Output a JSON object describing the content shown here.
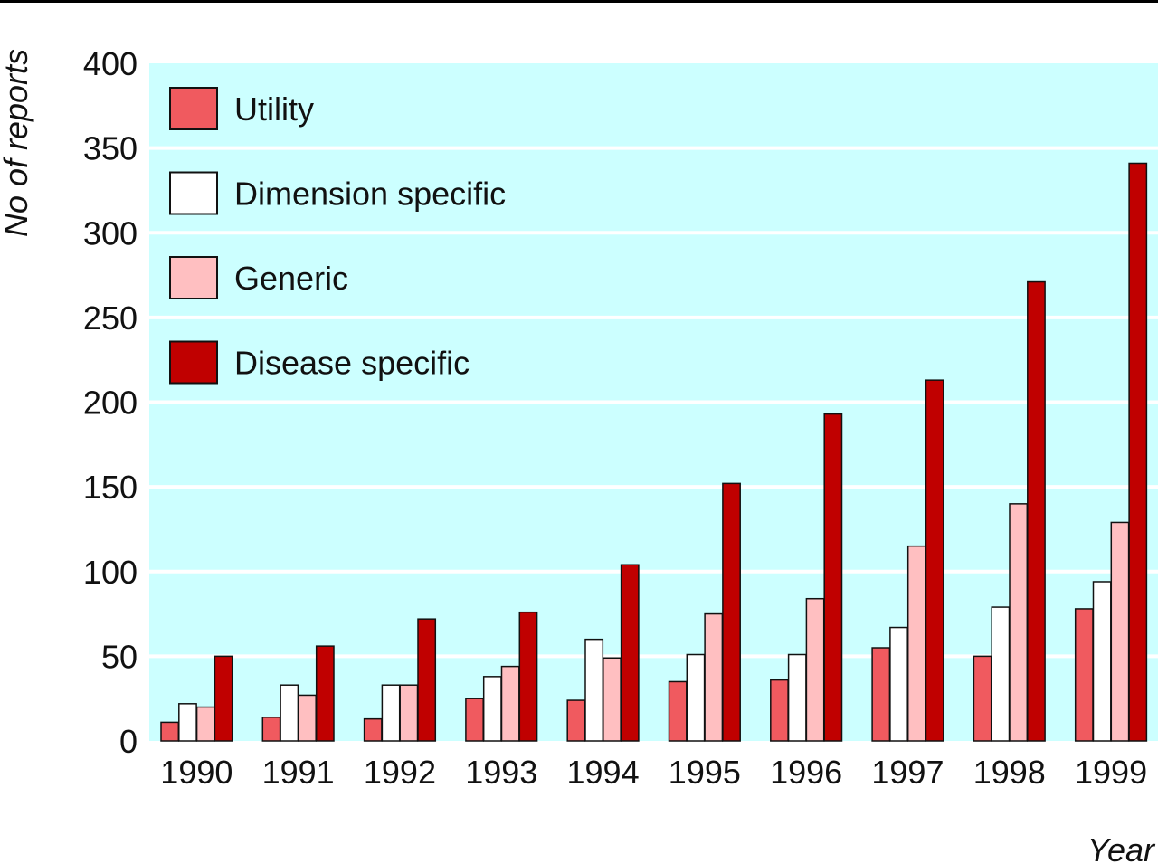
{
  "chart_data": {
    "type": "bar",
    "title": "",
    "xlabel": "Year",
    "ylabel": "No of reports",
    "ylim": [
      0,
      400
    ],
    "yticks": [
      0,
      50,
      100,
      150,
      200,
      250,
      300,
      350,
      400
    ],
    "categories": [
      "1990",
      "1991",
      "1992",
      "1993",
      "1994",
      "1995",
      "1996",
      "1997",
      "1998",
      "1999"
    ],
    "series": [
      {
        "name": "Utility",
        "color": "#f05a5f",
        "values": [
          11,
          14,
          13,
          25,
          24,
          35,
          36,
          55,
          50,
          78
        ]
      },
      {
        "name": "Dimension specific",
        "color": "#ffffff",
        "values": [
          22,
          33,
          33,
          38,
          60,
          51,
          51,
          67,
          79,
          94
        ]
      },
      {
        "name": "Generic",
        "color": "#ffbfc1",
        "values": [
          20,
          27,
          33,
          44,
          49,
          75,
          84,
          115,
          140,
          129
        ]
      },
      {
        "name": "Disease specific",
        "color": "#c00000",
        "values": [
          50,
          56,
          72,
          76,
          104,
          152,
          193,
          213,
          271,
          341
        ]
      }
    ],
    "grid": true,
    "legend_position": "top-left",
    "background_color": "#ccffff",
    "gridline_color": "#ffffff"
  }
}
